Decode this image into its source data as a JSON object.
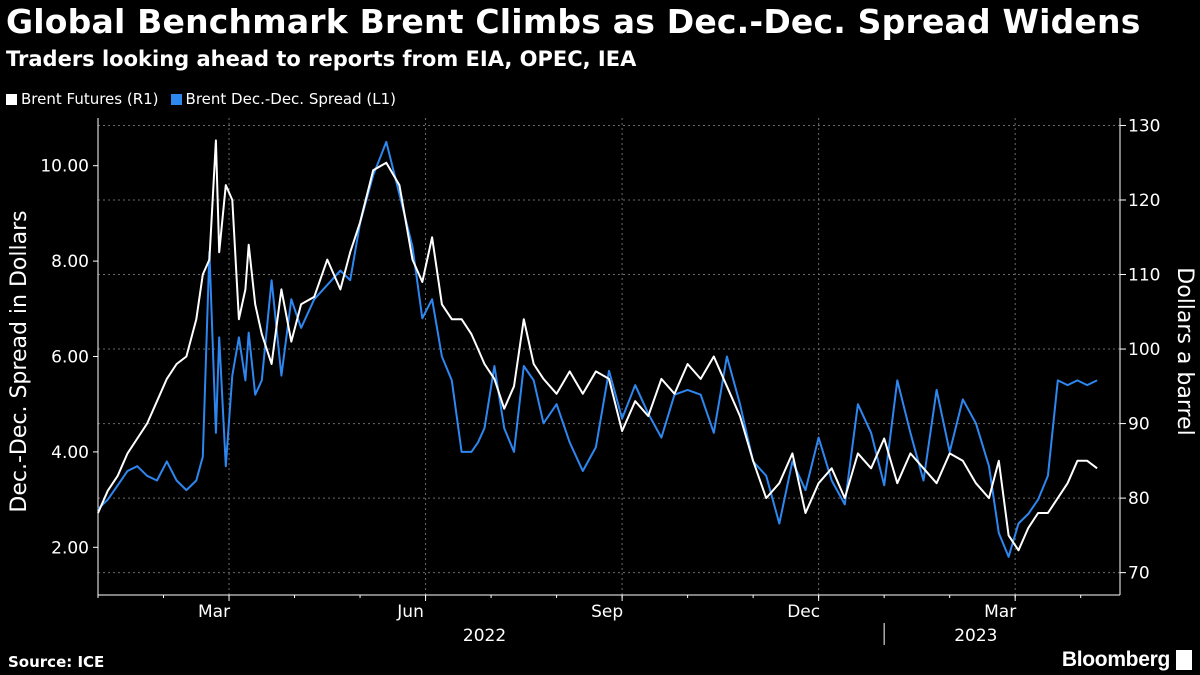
{
  "chart_data": {
    "type": "line",
    "title": "Global Benchmark Brent Climbs as Dec.-Dec. Spread Widens",
    "subtitle": "Traders looking ahead to reports from EIA, OPEC, IEA",
    "source": "Source: ICE",
    "brand": "Bloomberg",
    "left_axis": {
      "label": "Dec.-Dec. Spread in Dollars",
      "ylim": [
        1.0,
        11.0
      ],
      "ticks": [
        2.0,
        4.0,
        6.0,
        8.0,
        10.0
      ],
      "tick_labels": [
        "2.00",
        "4.00",
        "6.00",
        "8.00",
        "10.00"
      ]
    },
    "right_axis": {
      "label": "Dollars a barrel",
      "ylim": [
        67,
        131
      ],
      "ticks": [
        70,
        80,
        90,
        100,
        110,
        120,
        130
      ],
      "tick_labels": [
        "70",
        "80",
        "90",
        "100",
        "110",
        "120",
        "130"
      ]
    },
    "x_axis": {
      "range_months": [
        0,
        15.6
      ],
      "month_ticks": [
        {
          "label": "Mar",
          "pos": 2
        },
        {
          "label": "Jun",
          "pos": 5
        },
        {
          "label": "Sep",
          "pos": 8
        },
        {
          "label": "Dec",
          "pos": 11
        },
        {
          "label": "Mar",
          "pos": 14
        }
      ],
      "year_labels": [
        {
          "label": "2022",
          "pos": 5.9
        },
        {
          "label": "2023",
          "pos": 13.4
        }
      ],
      "year_divider": 12
    },
    "series": [
      {
        "name": "Brent Futures (R1)",
        "axis": "right",
        "color": "#ffffff",
        "x": [
          0.0,
          0.15,
          0.3,
          0.45,
          0.6,
          0.75,
          0.9,
          1.05,
          1.2,
          1.35,
          1.5,
          1.6,
          1.7,
          1.8,
          1.85,
          1.95,
          2.05,
          2.15,
          2.25,
          2.3,
          2.4,
          2.5,
          2.65,
          2.8,
          2.95,
          3.1,
          3.3,
          3.5,
          3.7,
          3.85,
          4.0,
          4.2,
          4.4,
          4.6,
          4.8,
          4.95,
          5.1,
          5.25,
          5.4,
          5.55,
          5.7,
          5.8,
          5.9,
          6.05,
          6.2,
          6.35,
          6.5,
          6.65,
          6.8,
          7.0,
          7.2,
          7.4,
          7.6,
          7.8,
          8.0,
          8.2,
          8.4,
          8.6,
          8.8,
          9.0,
          9.2,
          9.4,
          9.6,
          9.8,
          10.0,
          10.2,
          10.4,
          10.6,
          10.8,
          11.0,
          11.2,
          11.4,
          11.6,
          11.8,
          12.0,
          12.2,
          12.4,
          12.6,
          12.8,
          13.0,
          13.2,
          13.4,
          13.6,
          13.75,
          13.9,
          14.05,
          14.2,
          14.35,
          14.5,
          14.65,
          14.8,
          14.95,
          15.1,
          15.25
        ],
        "values": [
          78,
          81,
          83,
          86,
          88,
          90,
          93,
          96,
          98,
          99,
          104,
          110,
          112,
          128,
          113,
          122,
          120,
          104,
          108,
          114,
          106,
          102,
          98,
          108,
          101,
          106,
          107,
          112,
          108,
          113,
          117,
          124,
          125,
          122,
          112,
          109,
          115,
          106,
          104,
          104,
          102,
          100,
          98,
          96,
          92,
          95,
          104,
          98,
          96,
          94,
          97,
          94,
          97,
          96,
          89,
          93,
          91,
          96,
          94,
          98,
          96,
          99,
          95,
          91,
          85,
          80,
          82,
          86,
          78,
          82,
          84,
          80,
          86,
          84,
          88,
          82,
          86,
          84,
          82,
          86,
          85,
          82,
          80,
          85,
          75,
          73,
          76,
          78,
          78,
          80,
          82,
          85,
          85,
          84
        ]
      },
      {
        "name": "Brent Dec.-Dec. Spread (L1)",
        "axis": "left",
        "color": "#2e86ef",
        "x": [
          0.0,
          0.15,
          0.3,
          0.45,
          0.6,
          0.75,
          0.9,
          1.05,
          1.2,
          1.35,
          1.5,
          1.6,
          1.7,
          1.8,
          1.85,
          1.95,
          2.05,
          2.15,
          2.25,
          2.3,
          2.4,
          2.5,
          2.65,
          2.8,
          2.95,
          3.1,
          3.3,
          3.5,
          3.7,
          3.85,
          4.0,
          4.2,
          4.4,
          4.6,
          4.8,
          4.95,
          5.1,
          5.25,
          5.4,
          5.55,
          5.7,
          5.8,
          5.9,
          6.05,
          6.2,
          6.35,
          6.5,
          6.65,
          6.8,
          7.0,
          7.2,
          7.4,
          7.6,
          7.8,
          8.0,
          8.2,
          8.4,
          8.6,
          8.8,
          9.0,
          9.2,
          9.4,
          9.6,
          9.8,
          10.0,
          10.2,
          10.4,
          10.6,
          10.8,
          11.0,
          11.2,
          11.4,
          11.6,
          11.8,
          12.0,
          12.2,
          12.4,
          12.6,
          12.8,
          13.0,
          13.2,
          13.4,
          13.6,
          13.75,
          13.9,
          14.05,
          14.2,
          14.35,
          14.5,
          14.65,
          14.8,
          14.95,
          15.1,
          15.25
        ],
        "values": [
          2.8,
          3.0,
          3.3,
          3.6,
          3.7,
          3.5,
          3.4,
          3.8,
          3.4,
          3.2,
          3.4,
          3.9,
          8.2,
          4.4,
          6.4,
          3.7,
          5.6,
          6.4,
          5.5,
          6.5,
          5.2,
          5.5,
          7.6,
          5.6,
          7.2,
          6.6,
          7.2,
          7.5,
          7.8,
          7.6,
          8.8,
          9.8,
          10.5,
          9.4,
          8.3,
          6.8,
          7.2,
          6.0,
          5.5,
          4.0,
          4.0,
          4.2,
          4.5,
          5.8,
          4.5,
          4.0,
          5.8,
          5.5,
          4.6,
          5.0,
          4.2,
          3.6,
          4.1,
          5.7,
          4.7,
          5.4,
          4.8,
          4.3,
          5.2,
          5.3,
          5.2,
          4.4,
          6.0,
          5.0,
          3.8,
          3.5,
          2.5,
          3.8,
          3.2,
          4.3,
          3.4,
          2.9,
          5.0,
          4.4,
          3.3,
          5.5,
          4.4,
          3.4,
          5.3,
          4.0,
          5.1,
          4.6,
          3.7,
          2.3,
          1.8,
          2.5,
          2.7,
          3.0,
          3.5,
          5.5,
          5.4,
          5.5,
          5.4,
          5.5
        ]
      }
    ]
  }
}
